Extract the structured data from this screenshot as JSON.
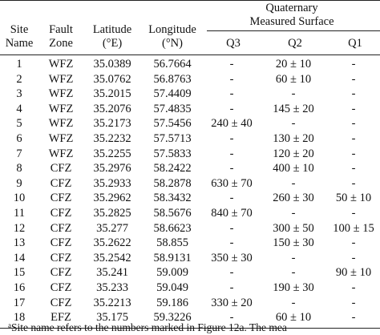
{
  "table": {
    "headers": {
      "site_name": [
        "Site",
        "Name"
      ],
      "fault_zone": [
        "Fault",
        "Zone"
      ],
      "latitude": [
        "Latitude",
        "(°E)"
      ],
      "longitude": [
        "Longitude",
        "(°N)"
      ],
      "surface_group": [
        "Quaternary",
        "Measured Surface"
      ],
      "q3": "Q3",
      "q2": "Q2",
      "q1": "Q1"
    },
    "rows": [
      [
        "1",
        "WFZ",
        "35.0389",
        "56.7664",
        "-",
        "20 ± 10",
        "-"
      ],
      [
        "2",
        "WFZ",
        "35.0762",
        "56.8763",
        "-",
        "60 ± 10",
        "-"
      ],
      [
        "3",
        "WFZ",
        "35.2015",
        "57.4409",
        "-",
        "-",
        "-"
      ],
      [
        "4",
        "WFZ",
        "35.2076",
        "57.4835",
        "-",
        "145 ± 20",
        "-"
      ],
      [
        "5",
        "WFZ",
        "35.2173",
        "57.5456",
        "240 ± 40",
        "-",
        "-"
      ],
      [
        "6",
        "WFZ",
        "35.2232",
        "57.5713",
        "-",
        "130 ± 20",
        "-"
      ],
      [
        "7",
        "WFZ",
        "35.2255",
        "57.5833",
        "-",
        "120 ± 20",
        "-"
      ],
      [
        "8",
        "CFZ",
        "35.2976",
        "58.2422",
        "-",
        "400 ± 10",
        "-"
      ],
      [
        "9",
        "CFZ",
        "35.2933",
        "58.2878",
        "630 ± 70",
        "-",
        "-"
      ],
      [
        "10",
        "CFZ",
        "35.2962",
        "58.3432",
        "-",
        "260 ± 30",
        "50 ± 10"
      ],
      [
        "11",
        "CFZ",
        "35.2825",
        "58.5676",
        "840 ± 70",
        "-",
        "-"
      ],
      [
        "12",
        "CFZ",
        "35.277",
        "58.6623",
        "-",
        "300 ± 50",
        "100 ± 15"
      ],
      [
        "13",
        "CFZ",
        "35.2622",
        "58.855",
        "-",
        "150 ± 30",
        "-"
      ],
      [
        "14",
        "CFZ",
        "35.2542",
        "58.9131",
        "350 ± 30",
        "-",
        "-"
      ],
      [
        "15",
        "CFZ",
        "35.241",
        "59.009",
        "-",
        "-",
        "90 ± 10"
      ],
      [
        "16",
        "CFZ",
        "35.233",
        "59.049",
        "-",
        "190 ± 30",
        "-"
      ],
      [
        "17",
        "CFZ",
        "35.2213",
        "59.186",
        "330 ± 20",
        "-",
        "-"
      ],
      [
        "18",
        "EFZ",
        "35.175",
        "59.3226",
        "-",
        "60 ± 10",
        "-"
      ]
    ]
  },
  "footnote": {
    "marker": "a",
    "text": "Site name refers to the numbers marked in Figure 12a. The mea"
  }
}
